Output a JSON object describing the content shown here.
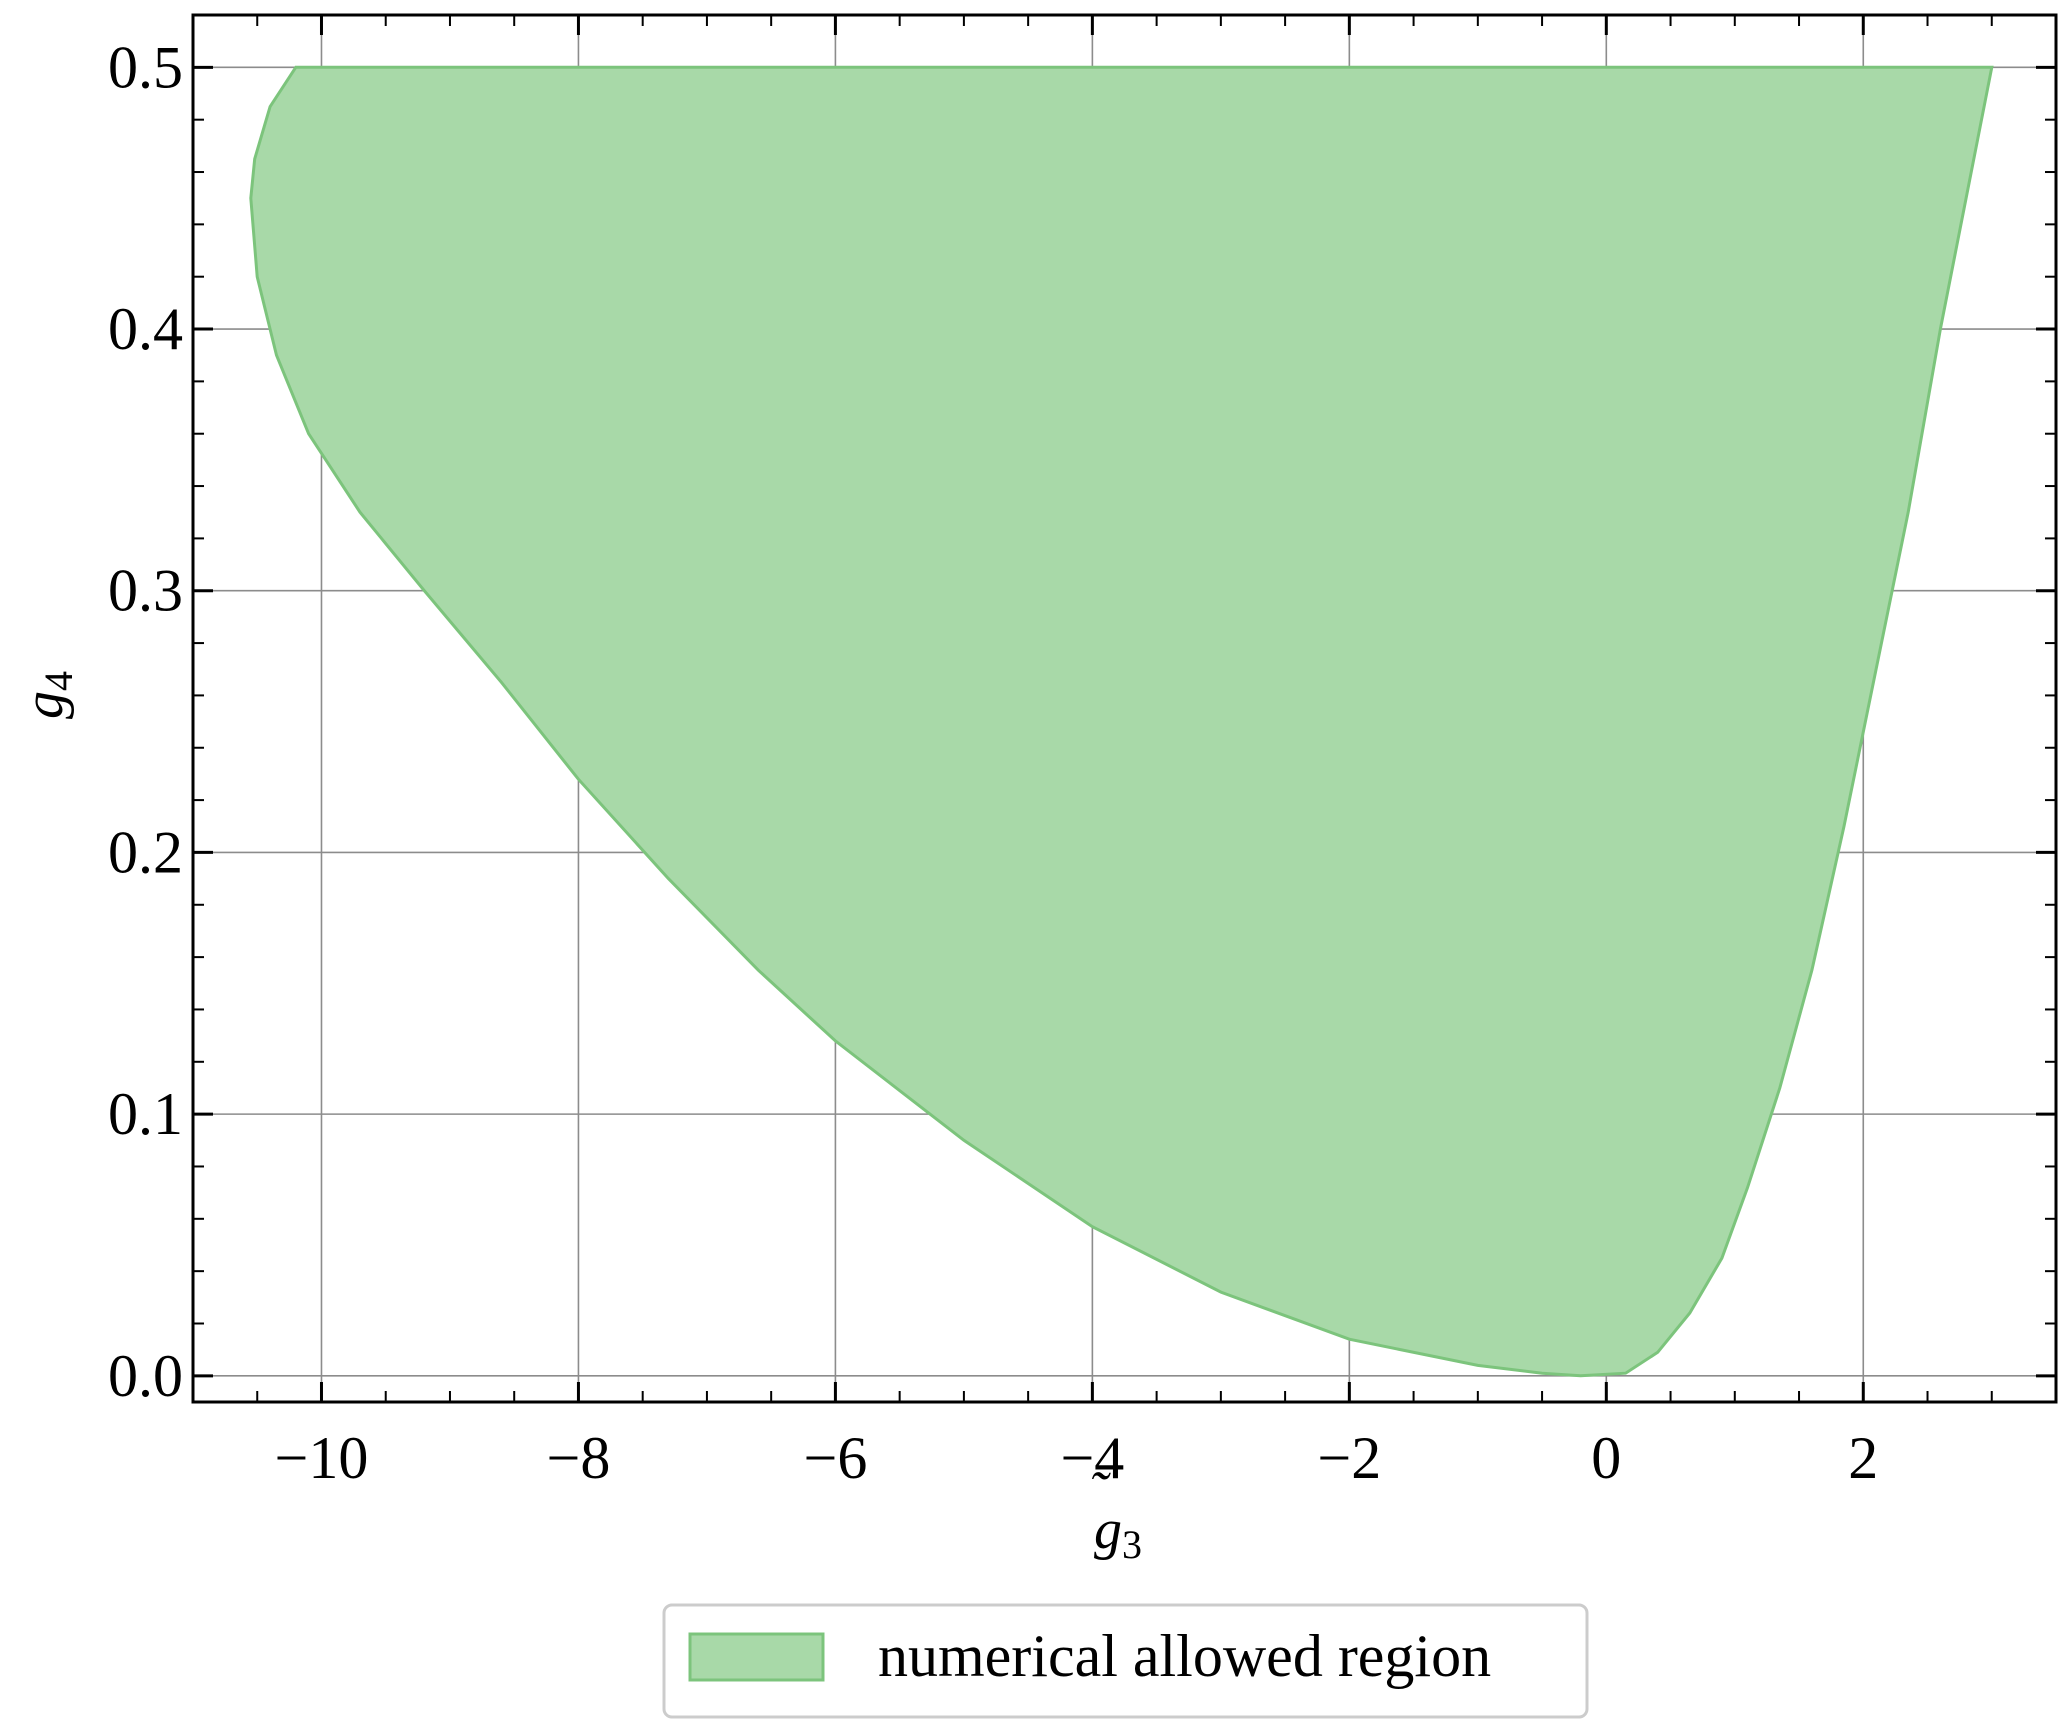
{
  "chart_data": {
    "type": "area",
    "title": "",
    "xlabel": {
      "base": "g",
      "accent": "˜",
      "sub": "3"
    },
    "ylabel": {
      "base": "g",
      "accent": "˜",
      "sub": "4"
    },
    "xlim": [
      -11,
      3.5
    ],
    "ylim": [
      -0.01,
      0.52
    ],
    "xticks": [
      -10,
      -8,
      -6,
      -4,
      -2,
      0,
      2
    ],
    "xtick_labels": [
      "−10",
      "−8",
      "−6",
      "−4",
      "−2",
      "0",
      "2"
    ],
    "yticks": [
      0.0,
      0.1,
      0.2,
      0.3,
      0.4,
      0.5
    ],
    "ytick_labels": [
      "0.0",
      "0.1",
      "0.2",
      "0.3",
      "0.4",
      "0.5"
    ],
    "grid": true,
    "legend_position": "bottom-center, below axes",
    "fill_color": "#a8d9a8",
    "edge_color": "#7cc47c",
    "series": [
      {
        "name": "numerical allowed region",
        "boundary": [
          [
            -10.2,
            0.5
          ],
          [
            -10.4,
            0.485
          ],
          [
            -10.52,
            0.465
          ],
          [
            -10.55,
            0.45
          ],
          [
            -10.5,
            0.42
          ],
          [
            -10.35,
            0.39
          ],
          [
            -10.1,
            0.36
          ],
          [
            -9.7,
            0.33
          ],
          [
            -9.2,
            0.3
          ],
          [
            -8.6,
            0.265
          ],
          [
            -8.0,
            0.228
          ],
          [
            -7.3,
            0.19
          ],
          [
            -6.6,
            0.155
          ],
          [
            -6.0,
            0.128
          ],
          [
            -5.0,
            0.09
          ],
          [
            -4.0,
            0.057
          ],
          [
            -3.0,
            0.032
          ],
          [
            -2.0,
            0.014
          ],
          [
            -1.0,
            0.004
          ],
          [
            -0.5,
            0.001
          ],
          [
            -0.2,
            0.0
          ],
          [
            0.15,
            0.001
          ],
          [
            0.4,
            0.009
          ],
          [
            0.65,
            0.024
          ],
          [
            0.9,
            0.045
          ],
          [
            1.1,
            0.072
          ],
          [
            1.35,
            0.11
          ],
          [
            1.6,
            0.155
          ],
          [
            1.85,
            0.21
          ],
          [
            2.1,
            0.27
          ],
          [
            2.35,
            0.33
          ],
          [
            2.6,
            0.4
          ],
          [
            2.8,
            0.45
          ],
          [
            3.0,
            0.5
          ]
        ]
      }
    ]
  }
}
